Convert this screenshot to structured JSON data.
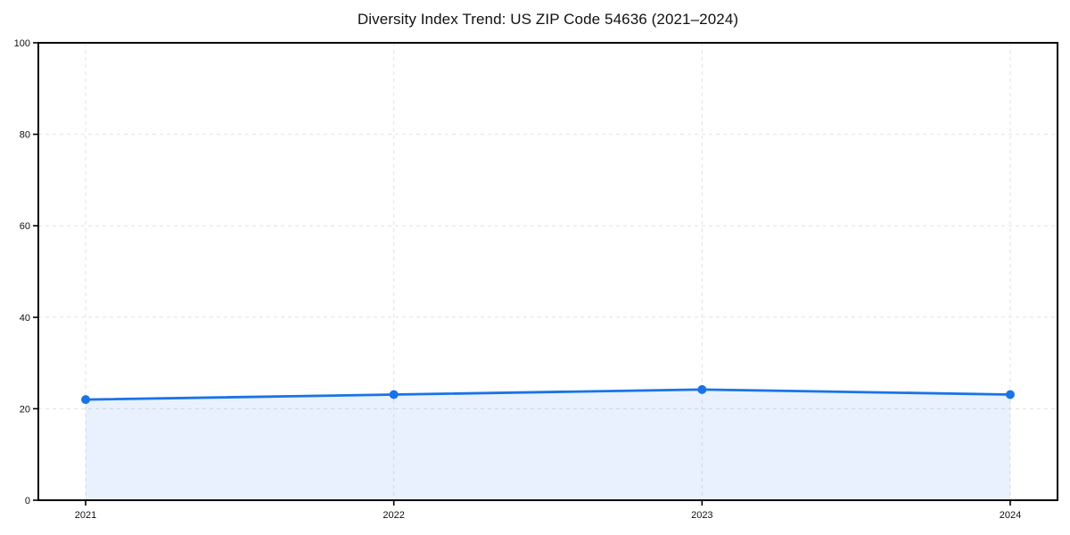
{
  "chart_data": {
    "type": "line",
    "title": "Diversity Index Trend: US ZIP Code 54636 (2021–2024)",
    "categories": [
      "2021",
      "2022",
      "2023",
      "2024"
    ],
    "x": [
      2021,
      2022,
      2023,
      2024
    ],
    "series": [
      {
        "name": "Diversity Index",
        "values": [
          22.0,
          23.1,
          24.2,
          23.1
        ]
      }
    ],
    "xlabel": "",
    "ylabel": "",
    "ylim": [
      0,
      100
    ],
    "yticks": [
      0,
      20,
      40,
      60,
      80,
      100
    ],
    "grid": true,
    "legend": false,
    "style": {
      "line_color": "#1a73e8",
      "marker_color": "#1a73e8",
      "fill_color": "rgba(26,115,232,0.10)",
      "area": true,
      "marker": "circle"
    }
  }
}
